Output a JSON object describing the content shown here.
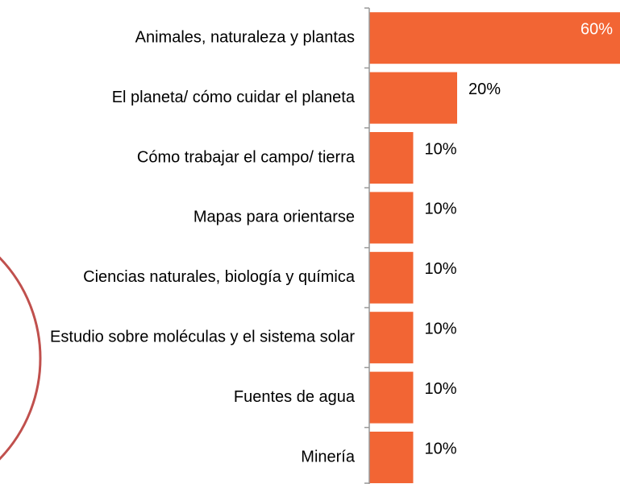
{
  "chart_data": {
    "type": "barh",
    "categories": [
      "Animales, naturaleza y plantas",
      "El planeta/ cómo cuidar el planeta",
      "Cómo trabajar el campo/ tierra",
      "Mapas para orientarse",
      "Ciencias naturales, biología y química",
      "Estudio sobre moléculas y el sistema solar",
      "Fuentes de agua",
      "Minería"
    ],
    "values": [
      60,
      20,
      10,
      10,
      10,
      10,
      10,
      10
    ],
    "value_labels": [
      "60%",
      "20%",
      "10%",
      "10%",
      "10%",
      "10%",
      "10%",
      "10%"
    ],
    "color": "#f26534",
    "xlim": [
      0,
      60
    ]
  }
}
